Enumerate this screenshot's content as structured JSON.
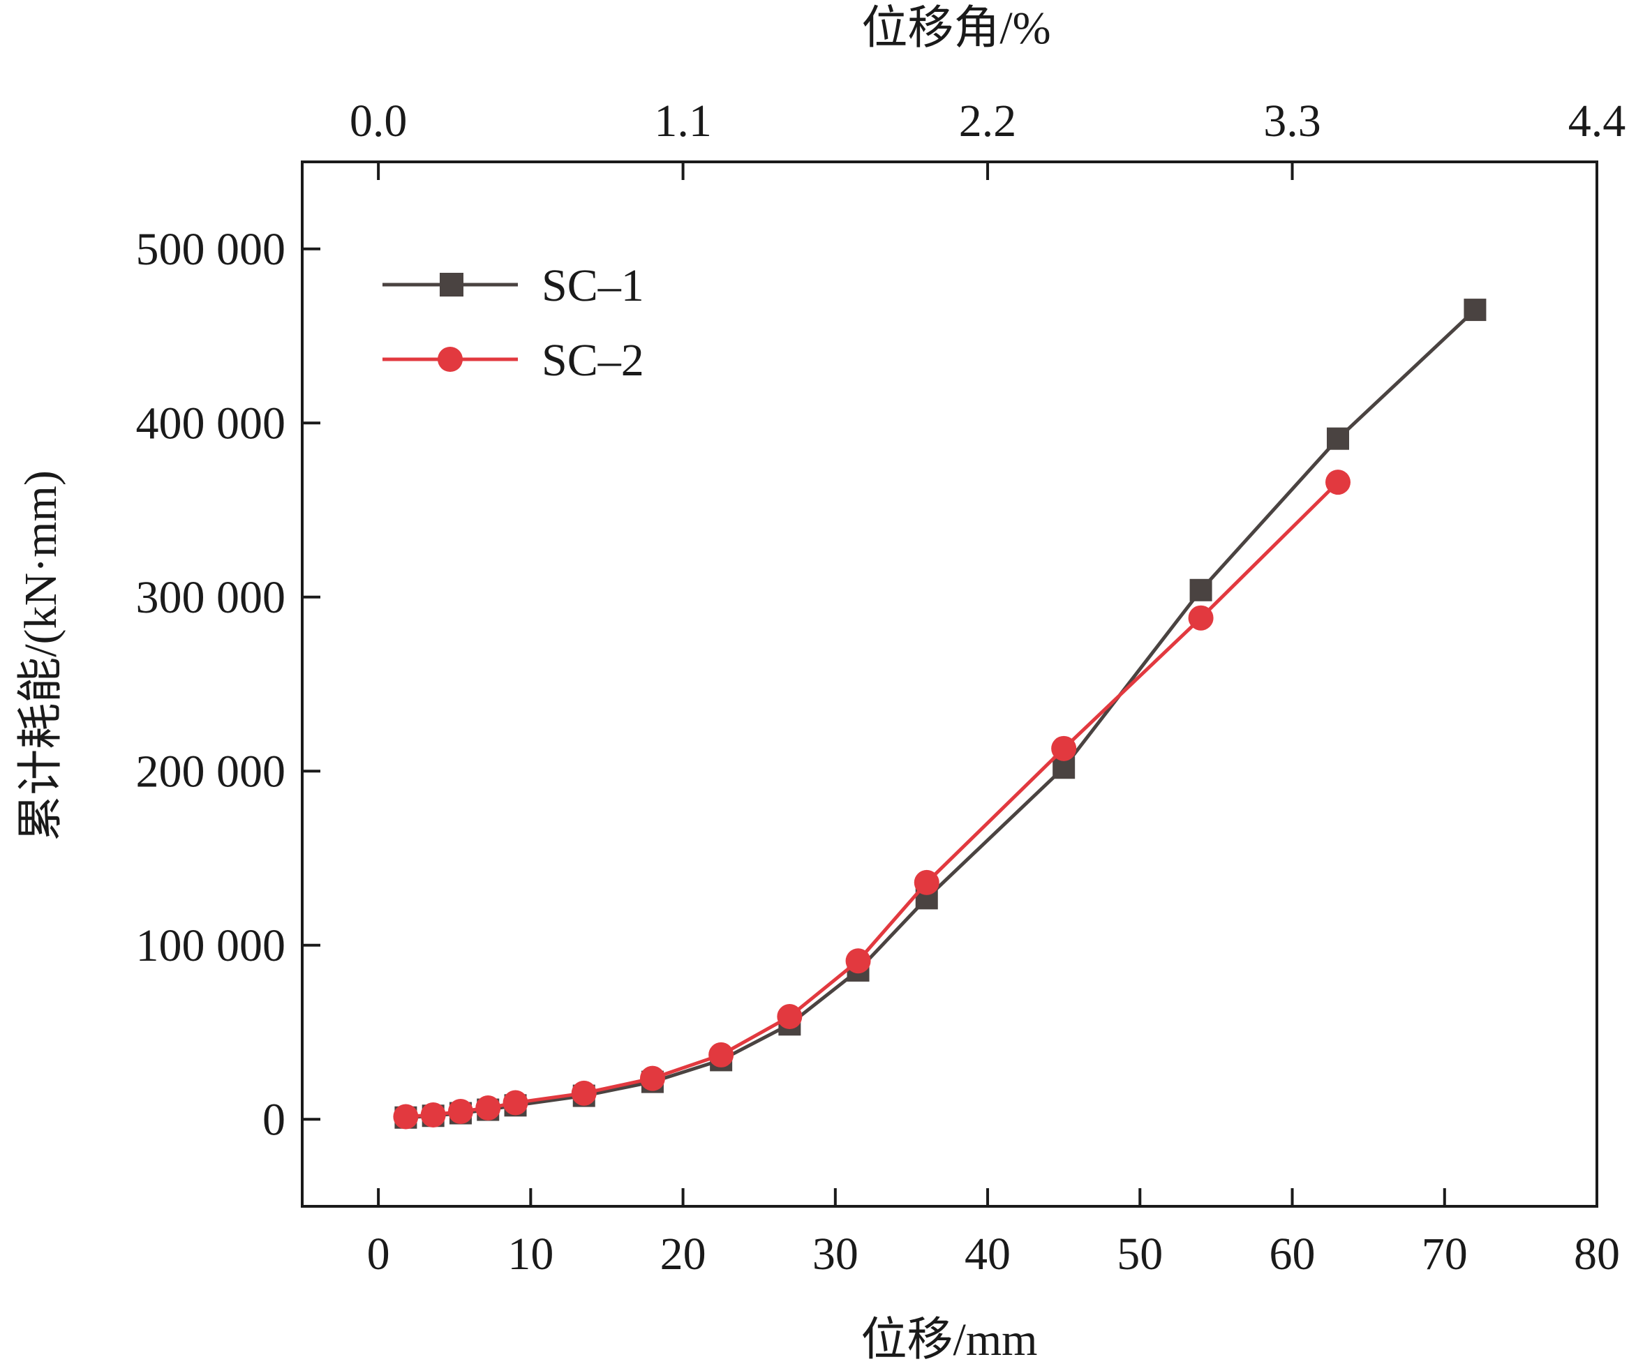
{
  "chart_data": {
    "type": "line",
    "xlabel": "位移/mm",
    "x2label": "位移角/%",
    "ylabel": "累计耗能/(kN·mm)",
    "xlim": [
      -5,
      80
    ],
    "ylim": [
      -50000,
      550000
    ],
    "x_ticks": [
      0,
      10,
      20,
      30,
      40,
      50,
      60,
      70,
      80
    ],
    "x_tick_labels": [
      "0",
      "10",
      "20",
      "30",
      "40",
      "50",
      "60",
      "70",
      "80"
    ],
    "x2_ticks": [
      0.0,
      1.1,
      2.2,
      3.3,
      4.4
    ],
    "x2_tick_labels": [
      "0.0",
      "1.1",
      "2.2",
      "3.3",
      "4.4"
    ],
    "y_ticks": [
      0,
      100000,
      200000,
      300000,
      400000,
      500000
    ],
    "y_tick_labels": [
      "0",
      "100 000",
      "200 000",
      "300 000",
      "400 000",
      "500 000"
    ],
    "legend_position": "top-left",
    "grid": false,
    "series": [
      {
        "name": "SC–1",
        "marker": "square",
        "color": "#4a4341",
        "x": [
          1.8,
          3.6,
          5.4,
          7.2,
          9.0,
          13.5,
          18.0,
          22.5,
          27.0,
          31.5,
          36.0,
          45.0,
          54.0,
          63.0,
          72.0
        ],
        "y": [
          1000,
          2000,
          3500,
          5500,
          8000,
          13500,
          21500,
          34000,
          54500,
          85500,
          127000,
          202000,
          304000,
          391000,
          465000
        ]
      },
      {
        "name": "SC–2",
        "marker": "circle",
        "color": "#e2393f",
        "x": [
          1.8,
          3.6,
          5.4,
          7.2,
          9.0,
          13.5,
          18.0,
          22.5,
          27.0,
          31.5,
          36.0,
          45.0,
          54.0,
          63.0
        ],
        "y": [
          1500,
          2500,
          4500,
          6500,
          9500,
          15000,
          23500,
          37000,
          59000,
          91000,
          136000,
          213000,
          288000,
          366000
        ]
      }
    ]
  }
}
